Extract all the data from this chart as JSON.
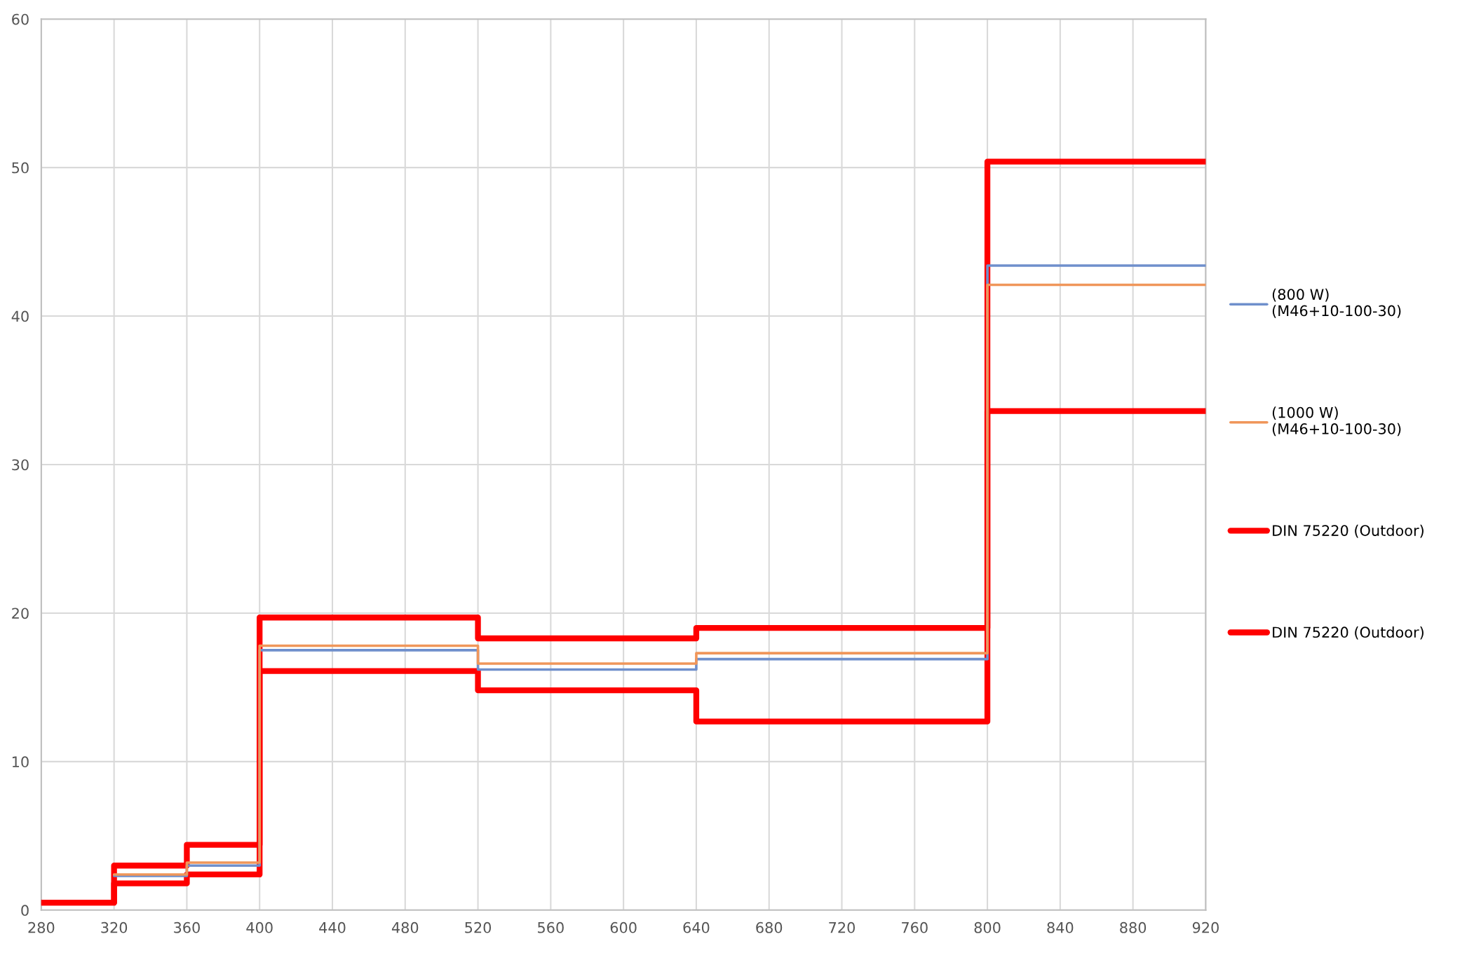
{
  "chart_data": {
    "type": "step",
    "x": [
      280,
      320,
      360,
      400,
      520,
      640,
      800,
      920
    ],
    "series": [
      {
        "name": "(800 W)\n(M46+10-100-30)",
        "color": "#6f8fcc",
        "x": [
          320,
          360,
          400,
          520,
          640,
          800,
          920
        ],
        "values": [
          2.3,
          3.0,
          17.5,
          16.2,
          16.9,
          43.4,
          43.4
        ]
      },
      {
        "name": "(1000 W)\n(M46+10-100-30)",
        "color": "#f0965a",
        "x": [
          320,
          360,
          400,
          520,
          640,
          800,
          920
        ],
        "values": [
          2.4,
          3.2,
          17.8,
          16.6,
          17.3,
          42.1,
          42.1
        ]
      },
      {
        "name": "DIN 75220 (Outdoor)",
        "color": "#ff0000",
        "values": [
          0.5,
          3.0,
          4.4,
          19.7,
          18.3,
          19.0,
          50.4,
          50.4
        ]
      },
      {
        "name": "DIN 75220 (Outdoor)",
        "color": "#ff0000",
        "values": [
          0.5,
          1.8,
          2.4,
          16.1,
          14.8,
          12.7,
          33.6,
          33.6
        ]
      }
    ],
    "xlim": [
      280,
      920
    ],
    "xticks": [
      280,
      320,
      360,
      400,
      440,
      480,
      520,
      560,
      600,
      640,
      680,
      720,
      760,
      800,
      840,
      880,
      920
    ],
    "ylim": [
      0,
      60
    ],
    "yticks": [
      0,
      10,
      20,
      30,
      40,
      50,
      60
    ],
    "grid": true,
    "legend": "right",
    "line_style": "solid"
  }
}
